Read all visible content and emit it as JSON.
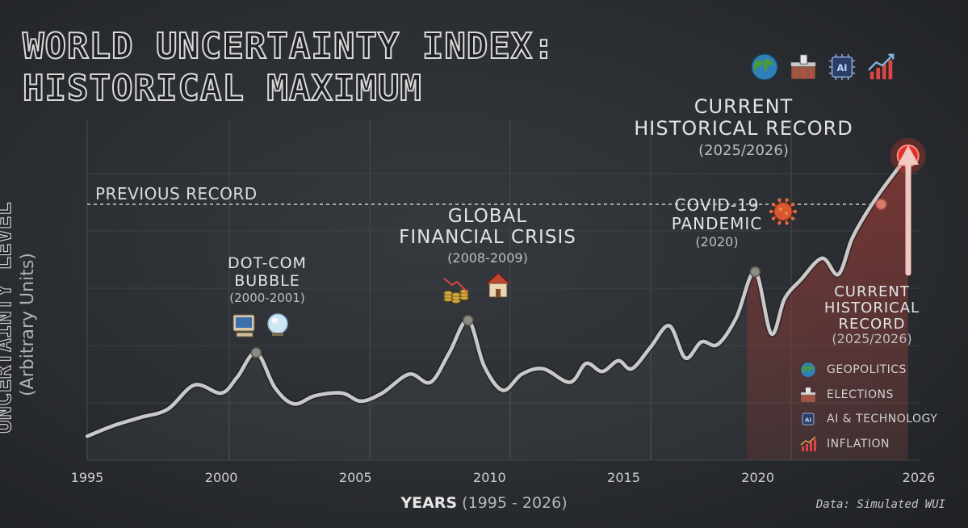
{
  "title_line1": "WORLD UNCERTAINTY INDEX:",
  "title_line2": "HISTORICAL MAXIMUM",
  "source_note": "Data: Simulated WUI",
  "icons": {
    "top": [
      "globe-icon",
      "elections-icon",
      "ai-chip-icon",
      "inflation-chart-icon"
    ],
    "dotcom": [
      "computer-icon",
      "crystal-ball-icon"
    ],
    "gfc": [
      "falling-coins-icon",
      "house-icon"
    ],
    "covid": "virus-icon"
  },
  "colors": {
    "line": "#c9c9c9",
    "record_marker": "#e0302a",
    "highlight_fill": "#7a2f2c",
    "arrow": "#f2c8c2",
    "dashed_reference": "#d6d6d6"
  },
  "chart_data": {
    "type": "line",
    "title": "WORLD UNCERTAINTY INDEX: HISTORICAL MAXIMUM",
    "xlabel_bold": "YEARS",
    "xlabel_rest": "(1995 - 2026)",
    "ylabel": "UNCERTAINTY LEVEL",
    "ylabel_sub": "(Arbitrary Units)",
    "xlim": [
      1995,
      2026
    ],
    "ylim": [
      0,
      100
    ],
    "x_ticks": [
      "1995",
      "2000",
      "2005",
      "2010",
      "2015",
      "2020",
      "2026"
    ],
    "x_tick_values": [
      1995,
      2000,
      2005,
      2010,
      2015,
      2020,
      2026
    ],
    "grid": true,
    "series": [
      {
        "x": [
          1995,
          1996,
          1997,
          1998,
          1999,
          2000,
          2000.6,
          2001.3,
          2002,
          2002.7,
          2003.5,
          2004.5,
          2005.2,
          2006,
          2007,
          2007.8,
          2008.5,
          2009.2,
          2009.8,
          2010.5,
          2011.2,
          2012,
          2013,
          2013.6,
          2014.2,
          2014.8,
          2015.3,
          2016,
          2016.7,
          2017.3,
          2017.9,
          2018.5,
          2019.2,
          2019.9,
          2020.5,
          2021,
          2021.6,
          2022.4,
          2023,
          2023.5,
          2024,
          2024.6,
          2025.2,
          2025.6
        ],
        "y": [
          2,
          6,
          9,
          12,
          21,
          18,
          24,
          33,
          20,
          14,
          17,
          18,
          15,
          18,
          25,
          22,
          33,
          45,
          28,
          19,
          25,
          27,
          22,
          29,
          26,
          30,
          27,
          35,
          43,
          31,
          37,
          36,
          46,
          63,
          40,
          53,
          60,
          68,
          62,
          75,
          84,
          93,
          101,
          106
        ]
      }
    ],
    "reference_line": {
      "label": "PREVIOUS RECORD",
      "y": 88
    },
    "annotations": [
      {
        "id": "dotcom",
        "lines": [
          "DOT-COM",
          "BUBBLE"
        ],
        "period": "(2000-2001)",
        "x": 2001.3,
        "y": 33
      },
      {
        "id": "gfc",
        "lines": [
          "GLOBAL",
          "FINANCIAL CRISIS"
        ],
        "period": "(2008-2009)",
        "x": 2009.2,
        "y": 45
      },
      {
        "id": "covid",
        "lines": [
          "COVID-19",
          "PANDEMIC"
        ],
        "period": "(2020)",
        "x": 2019.9,
        "y": 63
      },
      {
        "id": "record_top",
        "lines": [
          "CURRENT",
          "HISTORICAL RECORD"
        ],
        "period": "(2025/2026)",
        "x": 2025.6,
        "y": 106
      },
      {
        "id": "record_side",
        "lines": [
          "CURRENT",
          "HISTORICAL",
          "RECORD"
        ],
        "period": "(2025/2026)",
        "x": 2025.2,
        "y": 101
      }
    ],
    "legend": [
      "GEOPOLITICS",
      "ELECTIONS",
      "AI & TECHNOLOGY",
      "INFLATION"
    ],
    "legend_placement": "bottom-right"
  }
}
